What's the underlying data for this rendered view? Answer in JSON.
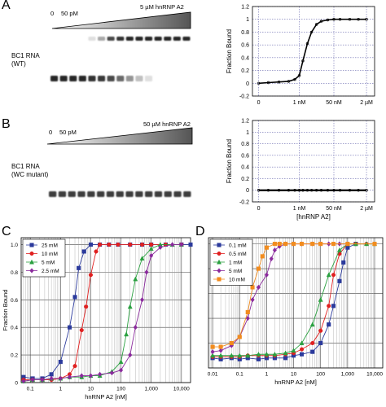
{
  "panels": {
    "A": {
      "letter": "A",
      "gel": {
        "conc_start": "0",
        "conc_low": "50 pM",
        "conc_high": "5 µM hnRNP A2",
        "rna_label": "BC1 RNA",
        "rna_variant": "(WT)",
        "lanes": 15,
        "bound_intensity": [
          0,
          0,
          0,
          0,
          0.15,
          0.4,
          0.85,
          0.95,
          1,
          1,
          1,
          1,
          1,
          1,
          1
        ],
        "free_intensity": [
          1,
          1,
          1,
          1,
          0.95,
          0.92,
          0.85,
          0.7,
          0.5,
          0.3,
          0.15,
          0,
          0,
          0,
          0
        ]
      }
    },
    "B": {
      "letter": "B",
      "gel": {
        "conc_start": "0",
        "conc_low": "50 pM",
        "conc_high": "50 µM hnRNP A2",
        "rna_label": "BC1 RNA",
        "rna_variant": "(WC mutant)",
        "lanes": 15,
        "free_intensity": [
          0.9,
          0.9,
          0.9,
          0.9,
          0.9,
          0.9,
          0.9,
          0.9,
          0.9,
          0.9,
          0.9,
          0.9,
          0.9,
          0.9,
          0.9
        ]
      }
    },
    "C": {
      "letter": "C"
    },
    "D": {
      "letter": "D"
    }
  },
  "chart_data": [
    {
      "id": "A",
      "type": "line",
      "ylabel": "Fraction Bound",
      "xlabel": "",
      "xscale": "log",
      "xlim_nM": [
        0.005,
        5000
      ],
      "xtick_values_nM": [
        0.01,
        1,
        50,
        2000
      ],
      "xtick_labels": [
        "0",
        "1 nM",
        "50 nM",
        "2 µM"
      ],
      "ylim": [
        -0.2,
        1.2
      ],
      "yticks": [
        -0.2,
        0,
        0.2,
        0.4,
        0.6,
        0.8,
        1,
        1.2
      ],
      "ytick_labels": [
        "-0.2",
        "0",
        "0.2",
        "0.4",
        "0.6",
        "0.8",
        "1",
        "1.2"
      ],
      "grid": true,
      "series": [
        {
          "color": "#000000",
          "marker": "circle",
          "x_nM": [
            0.01,
            0.03,
            0.1,
            0.3,
            0.6,
            1,
            1.5,
            2.5,
            4,
            7,
            12,
            25,
            50,
            100,
            300,
            800,
            2000
          ],
          "y": [
            0.0,
            0.01,
            0.02,
            0.03,
            0.06,
            0.12,
            0.35,
            0.62,
            0.8,
            0.92,
            0.97,
            0.99,
            1.0,
            1.0,
            1.0,
            1.0,
            1.0
          ]
        }
      ]
    },
    {
      "id": "B",
      "type": "line",
      "ylabel": "Fraction Bound",
      "xlabel": "[hnRNP A2]",
      "xscale": "log",
      "xlim_nM": [
        0.005,
        5000
      ],
      "xtick_values_nM": [
        0.01,
        1,
        50,
        2000
      ],
      "xtick_labels": [
        "0",
        "1 nM",
        "50 nM",
        "2 µM"
      ],
      "ylim": [
        -0.2,
        1.2
      ],
      "yticks": [
        -0.2,
        0,
        0.2,
        0.4,
        0.6,
        0.8,
        1,
        1.2
      ],
      "ytick_labels": [
        "-0.2",
        "0",
        "0.2",
        "0.4",
        "0.6",
        "0.8",
        "1",
        "1.2"
      ],
      "grid": true,
      "series": [
        {
          "color": "#000000",
          "marker": "circle",
          "x_nM": [
            0.01,
            0.03,
            0.1,
            0.3,
            0.6,
            1,
            1.5,
            2.5,
            4,
            7,
            12,
            25,
            50,
            100,
            300,
            800,
            2000
          ],
          "y": [
            0,
            0,
            0,
            0,
            0,
            0,
            0,
            0,
            0,
            0,
            0,
            0,
            0,
            0,
            0,
            0,
            0
          ]
        }
      ]
    },
    {
      "id": "C",
      "type": "line",
      "ylabel": "Fraction Bound",
      "xlabel": "hnRNP A2 [nM]",
      "xscale": "log",
      "xlim_nM": [
        0.05,
        20000
      ],
      "xtick_values_nM": [
        0.1,
        1,
        10,
        100,
        1000,
        10000
      ],
      "xtick_labels": [
        "0.1",
        "1",
        "10",
        "100",
        "1,000",
        "10,000"
      ],
      "ylim": [
        0,
        1.05
      ],
      "yticks": [
        0,
        0.2,
        0.4,
        0.6,
        0.8,
        1
      ],
      "ytick_labels": [
        "0",
        "0.2",
        "0.4",
        "0.6",
        "0.8",
        "1.0"
      ],
      "grid": true,
      "legend": "top-left",
      "series": [
        {
          "name": "25 mM",
          "color": "#2b3a9c",
          "marker": "square",
          "x_nM": [
            0.06,
            0.12,
            0.25,
            0.5,
            1,
            2,
            3,
            4,
            6,
            10,
            20,
            40,
            80,
            200,
            500,
            1000,
            3000,
            10000,
            20000
          ],
          "y": [
            0.04,
            0.03,
            0.03,
            0.06,
            0.15,
            0.4,
            0.62,
            0.83,
            0.95,
            1.0,
            1.0,
            1.0,
            1.0,
            1.0,
            1.0,
            1.0,
            1.0,
            1.0,
            1.0
          ]
        },
        {
          "name": "10 mM",
          "color": "#e02020",
          "marker": "circle",
          "x_nM": [
            0.06,
            0.12,
            0.25,
            0.5,
            1,
            2,
            3,
            5,
            7,
            10,
            15,
            20,
            40,
            80,
            200,
            500,
            1000,
            3000,
            10000
          ],
          "y": [
            0.02,
            0.02,
            0.02,
            0.02,
            0.03,
            0.06,
            0.12,
            0.38,
            0.55,
            0.78,
            0.95,
            1.0,
            1.0,
            1.0,
            1.0,
            1.0,
            1.0,
            1.0,
            1.0
          ]
        },
        {
          "name": "5 mM",
          "color": "#2aa040",
          "marker": "triangle",
          "x_nM": [
            0.06,
            0.12,
            0.25,
            0.5,
            1,
            2,
            5,
            10,
            20,
            50,
            100,
            150,
            200,
            300,
            500,
            1000,
            2000,
            5000,
            10000
          ],
          "y": [
            0.01,
            0.02,
            0.02,
            0.03,
            0.03,
            0.04,
            0.04,
            0.05,
            0.05,
            0.08,
            0.15,
            0.35,
            0.55,
            0.75,
            0.9,
            0.97,
            1.0,
            1.0,
            1.0
          ]
        },
        {
          "name": "2.5 mM",
          "color": "#8a2a9c",
          "marker": "diamond",
          "x_nM": [
            0.06,
            0.12,
            0.25,
            0.5,
            1,
            2,
            5,
            10,
            20,
            50,
            100,
            200,
            300,
            500,
            700,
            1000,
            2000,
            5000,
            10000
          ],
          "y": [
            0.01,
            0.02,
            0.02,
            0.03,
            0.03,
            0.04,
            0.05,
            0.05,
            0.06,
            0.07,
            0.09,
            0.2,
            0.4,
            0.6,
            0.8,
            0.92,
            0.98,
            1.0,
            1.0
          ]
        }
      ]
    },
    {
      "id": "D",
      "type": "line",
      "ylabel": "",
      "xlabel": "hnRNP A2 [nM]",
      "xscale": "log",
      "xlim_nM": [
        0.007,
        20000
      ],
      "xtick_values_nM": [
        0.01,
        0.1,
        1,
        10,
        100,
        1000,
        10000
      ],
      "xtick_labels": [
        "0.01",
        "0.1",
        "1",
        "10",
        "100",
        "1,000",
        "10,000"
      ],
      "ylim": [
        0,
        1.05
      ],
      "yticks": [
        0,
        0.2,
        0.4,
        0.6,
        0.8,
        1
      ],
      "ytick_labels": [
        "",
        "",
        "",
        "",
        "",
        ""
      ],
      "grid": true,
      "legend": "top-left",
      "series": [
        {
          "name": "0.1 mM",
          "color": "#2b3a9c",
          "marker": "square",
          "x_nM": [
            0.01,
            0.02,
            0.05,
            0.1,
            0.2,
            0.5,
            1,
            2,
            5,
            10,
            20,
            50,
            100,
            200,
            300,
            500,
            700,
            1000,
            2000
          ],
          "y": [
            0.08,
            0.07,
            0.08,
            0.07,
            0.08,
            0.07,
            0.08,
            0.08,
            0.08,
            0.1,
            0.11,
            0.13,
            0.2,
            0.35,
            0.5,
            0.7,
            0.85,
            0.97,
            1.0
          ]
        },
        {
          "name": "0.5 mM",
          "color": "#e02020",
          "marker": "circle",
          "x_nM": [
            0.01,
            0.02,
            0.05,
            0.1,
            0.2,
            0.5,
            1,
            2,
            5,
            10,
            20,
            50,
            100,
            200,
            300,
            500,
            1000,
            2000,
            5000
          ],
          "y": [
            0.09,
            0.09,
            0.09,
            0.09,
            0.1,
            0.1,
            0.1,
            0.1,
            0.11,
            0.12,
            0.15,
            0.2,
            0.3,
            0.5,
            0.75,
            0.92,
            1.0,
            1.0,
            1.0
          ]
        },
        {
          "name": "1 mM",
          "color": "#2aa040",
          "marker": "triangle",
          "x_nM": [
            0.01,
            0.02,
            0.05,
            0.1,
            0.2,
            0.5,
            1,
            2,
            5,
            10,
            20,
            50,
            100,
            200,
            500,
            1000,
            2000,
            5000,
            10000
          ],
          "y": [
            0.1,
            0.1,
            0.1,
            0.1,
            0.1,
            0.11,
            0.11,
            0.11,
            0.12,
            0.14,
            0.2,
            0.35,
            0.55,
            0.75,
            0.95,
            1.0,
            1.0,
            1.0,
            1.0
          ]
        },
        {
          "name": "5 mM",
          "color": "#8a2a9c",
          "marker": "diamond",
          "x_nM": [
            0.01,
            0.02,
            0.05,
            0.1,
            0.2,
            0.3,
            0.5,
            1,
            1.5,
            2,
            3,
            5,
            10,
            20,
            50,
            100,
            200,
            500,
            1000
          ],
          "y": [
            0.13,
            0.14,
            0.18,
            0.25,
            0.4,
            0.55,
            0.65,
            0.75,
            0.88,
            0.95,
            0.98,
            1.0,
            1.0,
            1.0,
            1.0,
            1.0,
            1.0,
            1.0,
            1.0
          ]
        },
        {
          "name": "10 mM",
          "color": "#f28c1e",
          "marker": "square",
          "x_nM": [
            0.01,
            0.02,
            0.05,
            0.1,
            0.2,
            0.3,
            0.5,
            0.7,
            1,
            2,
            3,
            5,
            10,
            20,
            50,
            100,
            300,
            1000,
            10000
          ],
          "y": [
            0.17,
            0.17,
            0.2,
            0.25,
            0.45,
            0.65,
            0.8,
            0.9,
            0.97,
            1.0,
            1.0,
            1.0,
            1.0,
            1.0,
            1.0,
            1.0,
            1.0,
            1.0,
            1.0
          ]
        }
      ]
    }
  ]
}
